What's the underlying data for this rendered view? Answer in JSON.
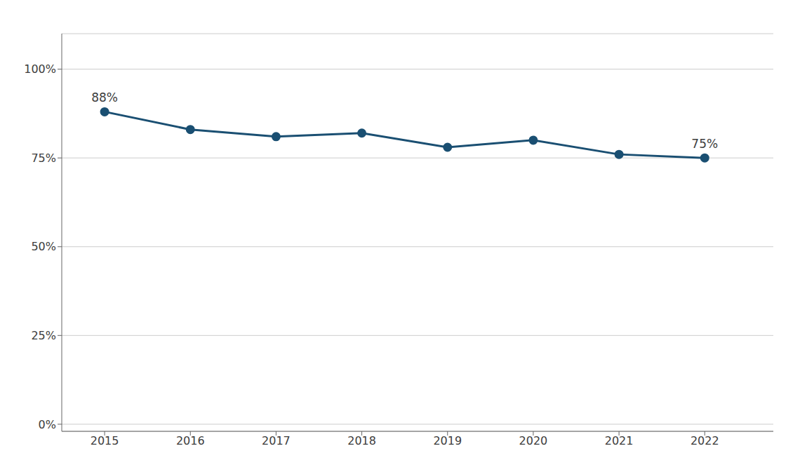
{
  "chart_data": {
    "type": "line",
    "x": [
      2015,
      2016,
      2017,
      2018,
      2019,
      2020,
      2021,
      2022
    ],
    "values": [
      0.88,
      0.83,
      0.81,
      0.82,
      0.78,
      0.8,
      0.76,
      0.75
    ],
    "color": "#1a4f72",
    "marker": "circle",
    "xlim": [
      2014.5,
      2022.8
    ],
    "xticks": [
      2015,
      2016,
      2017,
      2018,
      2019,
      2020,
      2021,
      2022
    ],
    "ylim": [
      -0.02,
      1.1
    ],
    "yticks": [
      {
        "value": 0.0,
        "label": "0%"
      },
      {
        "value": 0.25,
        "label": "25%"
      },
      {
        "value": 0.5,
        "label": "50%"
      },
      {
        "value": 0.75,
        "label": "75%"
      },
      {
        "value": 1.0,
        "label": "100%"
      }
    ],
    "grid": "y",
    "annotations": [
      {
        "text": "88%",
        "x": 2015,
        "y": 0.88
      },
      {
        "text": "75%",
        "x": 2022,
        "y": 0.75
      }
    ]
  }
}
